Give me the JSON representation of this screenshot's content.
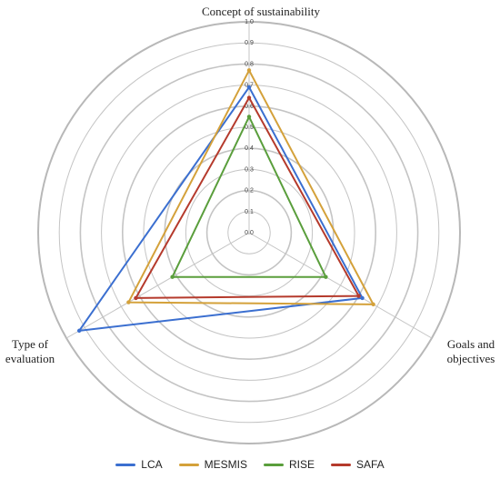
{
  "chart_data": {
    "type": "radar",
    "axes": [
      "Concept of sustainability",
      "Goals and\nobjectives",
      "Type of\nevaluation"
    ],
    "ticks": [
      "0.0",
      "0.1",
      "0.2",
      "0.3",
      "0.4",
      "0.5",
      "0.6",
      "0.7",
      "0.8",
      "0.9",
      "1.0"
    ],
    "rlim": [
      0,
      1.0
    ],
    "grid": true,
    "legend_position": "bottom",
    "series": [
      {
        "name": "LCA",
        "color": "#3b6fd0",
        "values": [
          0.69,
          0.62,
          0.93
        ]
      },
      {
        "name": "MESMIS",
        "color": "#d4a13a",
        "values": [
          0.77,
          0.68,
          0.66
        ]
      },
      {
        "name": "RISE",
        "color": "#5a9e3c",
        "values": [
          0.55,
          0.42,
          0.42
        ]
      },
      {
        "name": "SAFA",
        "color": "#b53a2c",
        "values": [
          0.64,
          0.6,
          0.62
        ]
      }
    ]
  }
}
